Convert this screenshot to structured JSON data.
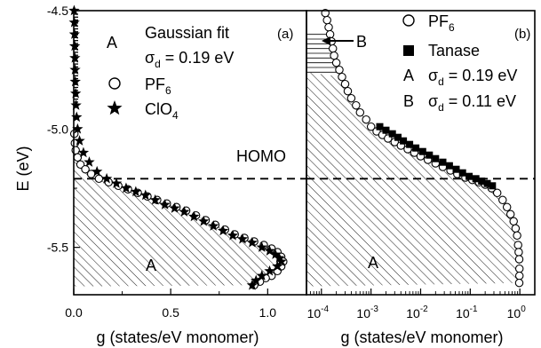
{
  "chart_data": [
    {
      "type": "scatter",
      "panel_label": "(a)",
      "ylabel": "E (eV)",
      "xlabel": "g (states/eV monomer)",
      "xlim": [
        0.0,
        1.2
      ],
      "ylim": [
        -5.7,
        -4.5
      ],
      "xticks": [
        "0.0",
        "0.5",
        "1.0"
      ],
      "yticks": [
        "-4.5",
        "-5.0",
        "-5.5"
      ],
      "annotations": {
        "homo": "HOMO",
        "homo_level": -5.21,
        "region_label": "A",
        "legend_marker_a": "A",
        "legend_fit": "Gaussian fit",
        "legend_sigma_sym": "σ",
        "legend_sigma_sub": "d",
        "legend_sigma_val": " = 0.19 eV",
        "legend_pf6_main": "PF",
        "legend_pf6_sub": "6",
        "legend_clo4_main": "ClO",
        "legend_clo4_sub": "4"
      },
      "series": [
        {
          "name": "PF6",
          "marker": "circle-open",
          "x": [
            0.003,
            0.006,
            0.01,
            0.02,
            0.035,
            0.06,
            0.09,
            0.13,
            0.18,
            0.23,
            0.28,
            0.33,
            0.38,
            0.43,
            0.48,
            0.53,
            0.58,
            0.63,
            0.68,
            0.73,
            0.78,
            0.83,
            0.88,
            0.93,
            0.98,
            1.02,
            1.05,
            1.07,
            1.08,
            1.07,
            1.05,
            1.02,
            0.99,
            0.96,
            0.93
          ],
          "y": [
            -5.02,
            -5.06,
            -5.09,
            -5.12,
            -5.15,
            -5.17,
            -5.19,
            -5.21,
            -5.225,
            -5.24,
            -5.255,
            -5.27,
            -5.285,
            -5.3,
            -5.315,
            -5.33,
            -5.345,
            -5.365,
            -5.385,
            -5.405,
            -5.425,
            -5.445,
            -5.46,
            -5.475,
            -5.49,
            -5.505,
            -5.52,
            -5.54,
            -5.56,
            -5.58,
            -5.6,
            -5.62,
            -5.63,
            -5.645,
            -5.66
          ]
        },
        {
          "name": "ClO4",
          "marker": "star-filled",
          "x": [
            0.002,
            0.003,
            0.004,
            0.005,
            0.006,
            0.007,
            0.008,
            0.01,
            0.012,
            0.015,
            0.02,
            0.03,
            0.05,
            0.08,
            0.12,
            0.17,
            0.22,
            0.27,
            0.32,
            0.37,
            0.42,
            0.47,
            0.52,
            0.57,
            0.62,
            0.67,
            0.72,
            0.77,
            0.82,
            0.87,
            0.92,
            0.97,
            1.01,
            1.04,
            1.06,
            1.07,
            1.05,
            1.01,
            0.97,
            0.94,
            0.92
          ],
          "y": [
            -4.5,
            -4.55,
            -4.6,
            -4.65,
            -4.7,
            -4.75,
            -4.8,
            -4.85,
            -4.9,
            -4.95,
            -5.0,
            -5.05,
            -5.1,
            -5.14,
            -5.18,
            -5.21,
            -5.23,
            -5.25,
            -5.265,
            -5.28,
            -5.3,
            -5.32,
            -5.335,
            -5.35,
            -5.37,
            -5.39,
            -5.41,
            -5.43,
            -5.45,
            -5.465,
            -5.48,
            -5.5,
            -5.515,
            -5.53,
            -5.545,
            -5.56,
            -5.58,
            -5.6,
            -5.62,
            -5.64,
            -5.66
          ]
        }
      ]
    },
    {
      "type": "scatter",
      "panel_label": "(b)",
      "xlabel": "g (states/eV monomer)",
      "xscale": "log",
      "xlim": [
        5e-05,
        2
      ],
      "ylim": [
        -5.7,
        -4.5
      ],
      "xticks": [
        {
          "base": "10",
          "exp": "-4",
          "value": 0.0001
        },
        {
          "base": "10",
          "exp": "-3",
          "value": 0.001
        },
        {
          "base": "10",
          "exp": "-2",
          "value": 0.01
        },
        {
          "base": "10",
          "exp": "-1",
          "value": 0.1
        },
        {
          "base": "10",
          "exp": "0",
          "value": 1
        }
      ],
      "annotations": {
        "arrow_label": "B",
        "region_label": "A",
        "legend_pf6_main": "PF",
        "legend_pf6_sub": "6",
        "legend_tanase": "Tanase",
        "legend_a": "A",
        "legend_b": "B",
        "legend_sigma_sym": "σ",
        "legend_sigma_sub": "d",
        "legend_a_val": " = 0.19 eV",
        "legend_b_val": " = 0.11 eV"
      },
      "series": [
        {
          "name": "PF6",
          "marker": "circle-open",
          "x": [
            0.00012,
            0.00013,
            0.00014,
            0.00015,
            0.00016,
            0.00017,
            0.00018,
            0.0002,
            0.00023,
            0.00026,
            0.0003,
            0.00034,
            0.0004,
            0.0005,
            0.0006,
            0.0008,
            0.001,
            0.0013,
            0.0017,
            0.0022,
            0.003,
            0.004,
            0.0055,
            0.0075,
            0.01,
            0.014,
            0.02,
            0.028,
            0.04,
            0.055,
            0.08,
            0.11,
            0.15,
            0.2,
            0.27,
            0.35,
            0.45,
            0.55,
            0.65,
            0.75,
            0.82,
            0.88,
            0.92,
            0.95,
            0.97,
            0.98,
            0.98,
            0.97
          ],
          "y": [
            -4.51,
            -4.54,
            -4.57,
            -4.6,
            -4.63,
            -4.66,
            -4.69,
            -4.72,
            -4.75,
            -4.78,
            -4.81,
            -4.84,
            -4.87,
            -4.9,
            -4.93,
            -4.96,
            -4.99,
            -5.01,
            -5.025,
            -5.04,
            -5.055,
            -5.07,
            -5.085,
            -5.1,
            -5.115,
            -5.13,
            -5.145,
            -5.16,
            -5.175,
            -5.19,
            -5.205,
            -5.215,
            -5.225,
            -5.235,
            -5.25,
            -5.27,
            -5.3,
            -5.33,
            -5.36,
            -5.39,
            -5.42,
            -5.45,
            -5.49,
            -5.52,
            -5.55,
            -5.59,
            -5.62,
            -5.65
          ]
        },
        {
          "name": "Tanase",
          "marker": "square-filled",
          "x": [
            0.0015,
            0.002,
            0.0027,
            0.0035,
            0.0045,
            0.006,
            0.008,
            0.011,
            0.015,
            0.02,
            0.028,
            0.038,
            0.052,
            0.07,
            0.095,
            0.13,
            0.17,
            0.22,
            0.28
          ],
          "y": [
            -4.99,
            -5.005,
            -5.02,
            -5.035,
            -5.05,
            -5.065,
            -5.08,
            -5.095,
            -5.11,
            -5.125,
            -5.14,
            -5.155,
            -5.17,
            -5.185,
            -5.2,
            -5.21,
            -5.22,
            -5.23,
            -5.24
          ]
        }
      ]
    }
  ]
}
